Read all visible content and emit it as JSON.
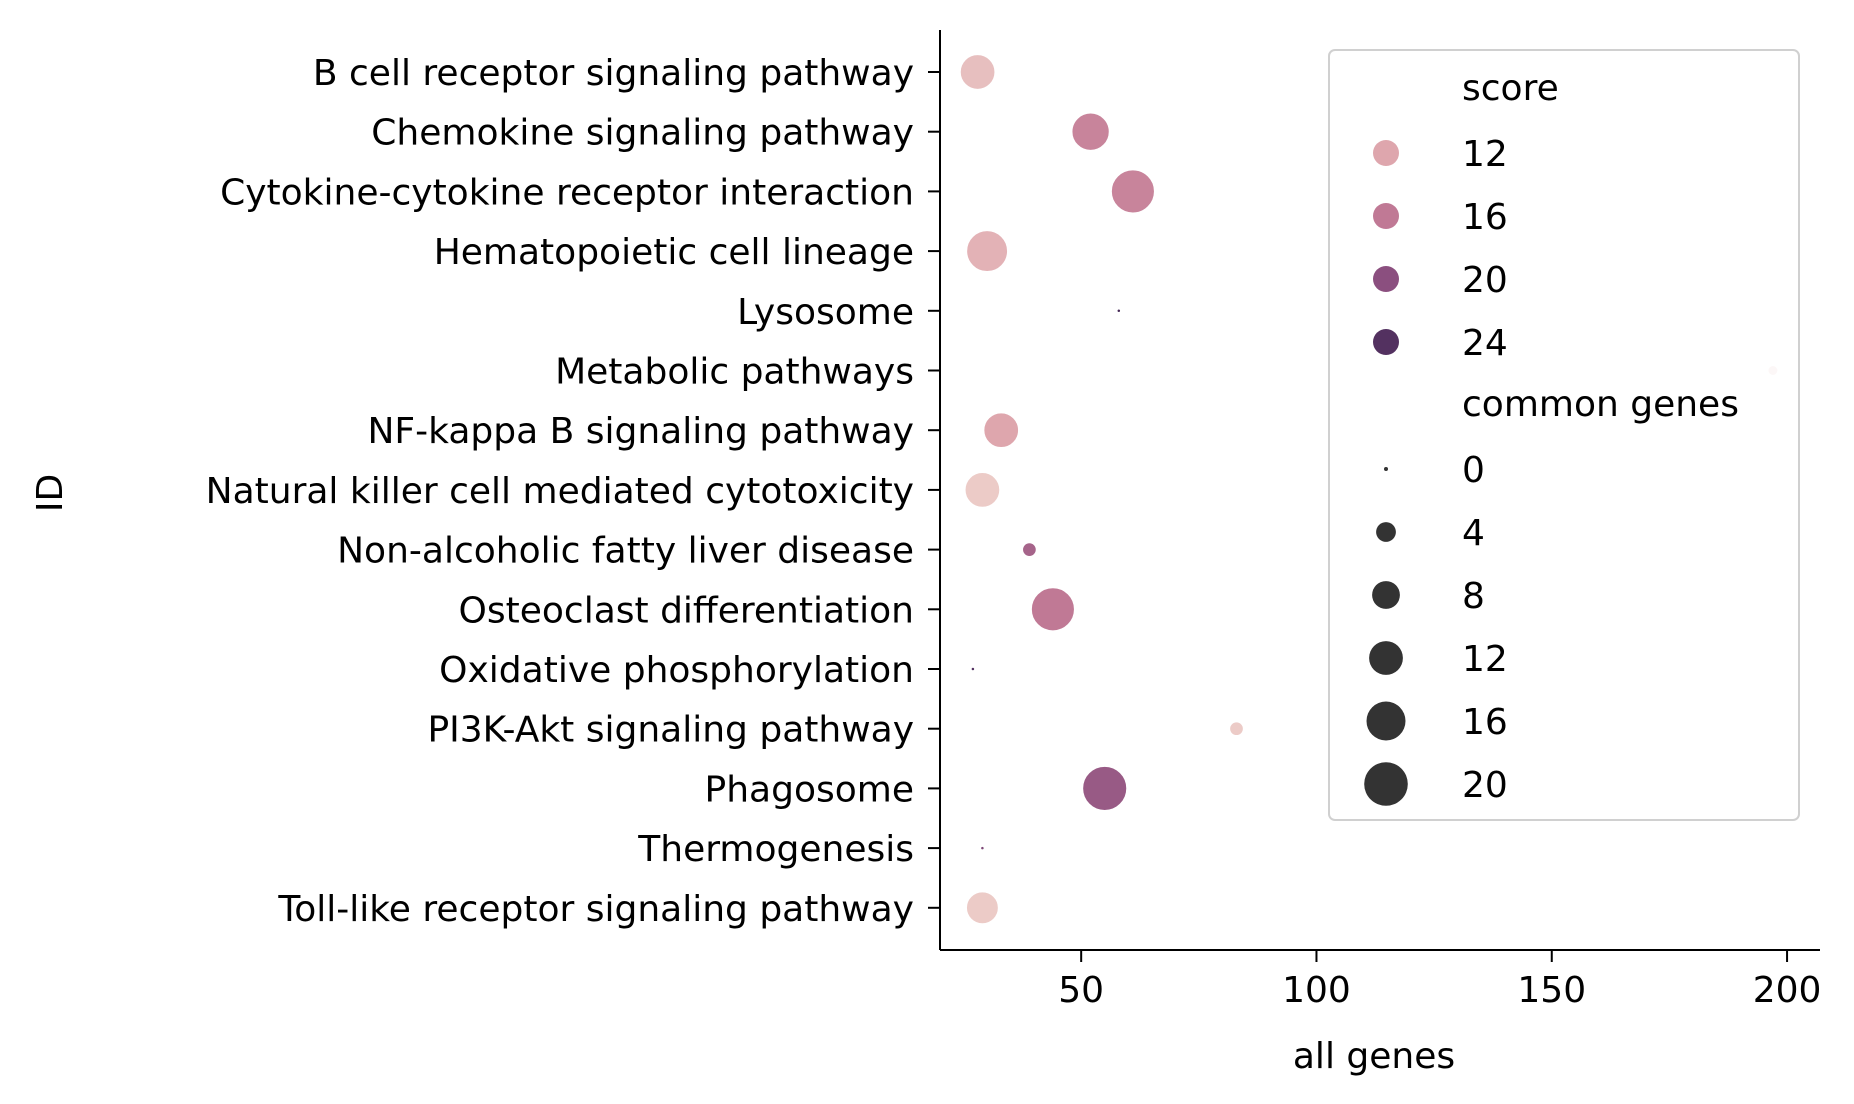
{
  "chart_data": {
    "type": "scatter",
    "xlabel": "all genes",
    "ylabel": "ID",
    "xlim": [
      20,
      207
    ],
    "x_ticks": [
      50,
      100,
      150,
      200
    ],
    "grid": false,
    "legend_position": "top-right",
    "categories": [
      "B cell receptor signaling pathway",
      "Chemokine signaling pathway",
      "Cytokine-cytokine receptor interaction",
      "Hematopoietic cell lineage",
      "Lysosome",
      "Metabolic pathways",
      "NF-kappa B signaling pathway",
      "Natural killer cell mediated cytotoxicity",
      "Non-alcoholic fatty liver disease",
      "Osteoclast differentiation",
      "Oxidative phosphorylation",
      "PI3K-Akt signaling pathway",
      "Phagosome",
      "Thermogenesis",
      "Toll-like receptor signaling pathway"
    ],
    "points": [
      {
        "id": "B cell receptor signaling pathway",
        "all_genes": 28,
        "common_genes": 13,
        "score": 10
      },
      {
        "id": "Chemokine signaling pathway",
        "all_genes": 52,
        "common_genes": 15,
        "score": 15
      },
      {
        "id": "Cytokine-cytokine receptor interaction",
        "all_genes": 61,
        "common_genes": 20,
        "score": 15
      },
      {
        "id": "Hematopoietic cell lineage",
        "all_genes": 30,
        "common_genes": 18,
        "score": 11
      },
      {
        "id": "Lysosome",
        "all_genes": 58,
        "common_genes": 0,
        "score": 25
      },
      {
        "id": "Metabolic pathways",
        "all_genes": 197,
        "common_genes": 1,
        "score": 9
      },
      {
        "id": "NF-kappa B signaling pathway",
        "all_genes": 33,
        "common_genes": 13,
        "score": 12
      },
      {
        "id": "Natural killer cell mediated cytotoxicity",
        "all_genes": 29,
        "common_genes": 13,
        "score": 9
      },
      {
        "id": "Non-alcoholic fatty liver disease",
        "all_genes": 39,
        "common_genes": 2,
        "score": 18
      },
      {
        "id": "Osteoclast differentiation",
        "all_genes": 44,
        "common_genes": 20,
        "score": 16
      },
      {
        "id": "Oxidative phosphorylation",
        "all_genes": 27,
        "common_genes": 0,
        "score": 24
      },
      {
        "id": "PI3K-Akt signaling pathway",
        "all_genes": 83,
        "common_genes": 2,
        "score": 9
      },
      {
        "id": "Phagosome",
        "all_genes": 55,
        "common_genes": 21,
        "score": 19
      },
      {
        "id": "Thermogenesis",
        "all_genes": 29,
        "common_genes": 0,
        "score": 21
      },
      {
        "id": "Toll-like receptor signaling pathway",
        "all_genes": 29,
        "common_genes": 11,
        "score": 9
      }
    ],
    "legend": {
      "score_title": "score",
      "score_entries": [
        {
          "label": "12",
          "color": "#dea6ad"
        },
        {
          "label": "16",
          "color": "#c07995"
        },
        {
          "label": "20",
          "color": "#8b4f7f"
        },
        {
          "label": "24",
          "color": "#533160"
        }
      ],
      "size_title": "common genes",
      "size_entries": [
        {
          "label": "0",
          "value": 0
        },
        {
          "label": "4",
          "value": 4
        },
        {
          "label": "8",
          "value": 8
        },
        {
          "label": "12",
          "value": 12
        },
        {
          "label": "16",
          "value": 16
        },
        {
          "label": "20",
          "value": 20
        }
      ]
    }
  }
}
